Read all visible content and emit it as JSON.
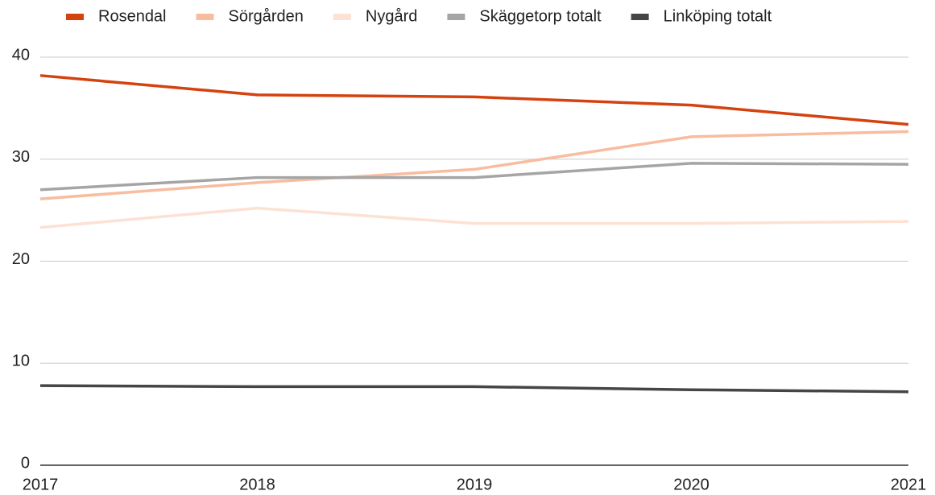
{
  "chart_data": {
    "type": "line",
    "x": [
      2017,
      2018,
      2019,
      2020,
      2021
    ],
    "xlim": [
      2017,
      2021
    ],
    "xticks": [
      2017,
      2018,
      2019,
      2020,
      2021
    ],
    "ylim": [
      0,
      40
    ],
    "yticks": [
      0,
      10,
      20,
      30,
      40
    ],
    "grid": true,
    "legend": "top",
    "series": [
      {
        "name": "Rosendal",
        "color": "#d4420f",
        "values": [
          38.2,
          36.3,
          36.1,
          35.3,
          33.4
        ]
      },
      {
        "name": "Sörgården",
        "color": "#f8bc9f",
        "values": [
          26.1,
          27.7,
          29.0,
          32.2,
          32.7
        ]
      },
      {
        "name": "Nygård",
        "color": "#fde1d3",
        "values": [
          23.3,
          25.2,
          23.7,
          23.7,
          23.9
        ]
      },
      {
        "name": "Skäggetorp totalt",
        "color": "#a5a5a5",
        "values": [
          27.0,
          28.2,
          28.2,
          29.6,
          29.5
        ]
      },
      {
        "name": "Linköping totalt",
        "color": "#454545",
        "values": [
          7.8,
          7.7,
          7.7,
          7.4,
          7.2
        ]
      }
    ]
  }
}
